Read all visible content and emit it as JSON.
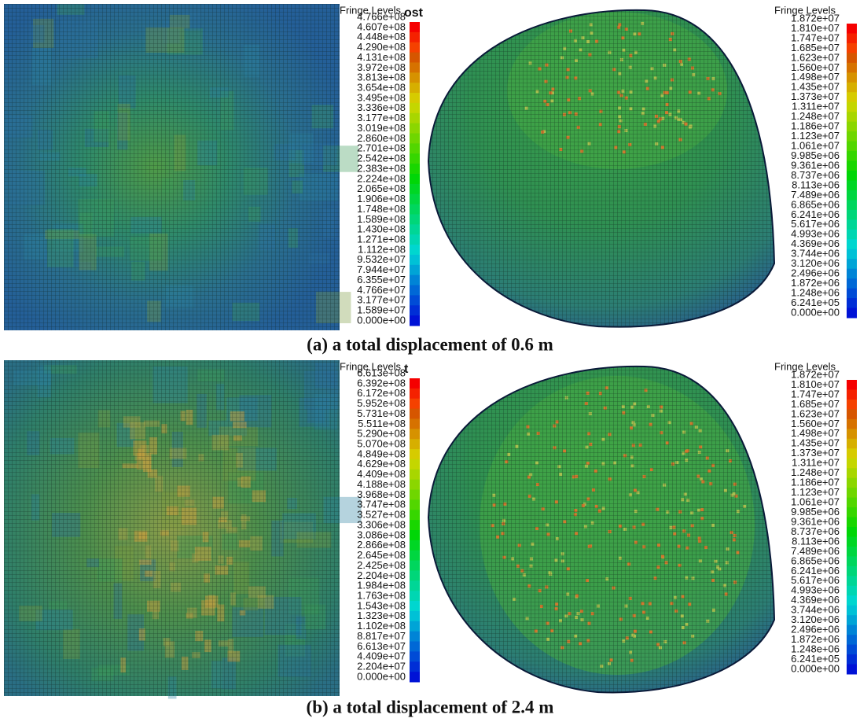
{
  "figure": {
    "rows": [
      {
        "caption": "(a) a total displacement of 0.6 m",
        "panels": [
          {
            "title_fragment": "ost",
            "legend_title": "Fringe Levels",
            "levels": [
              "4.766e+08",
              "4.607e+08",
              "4.448e+08",
              "4.290e+08",
              "4.131e+08",
              "3.972e+08",
              "3.813e+08",
              "3.654e+08",
              "3.495e+08",
              "3.336e+08",
              "3.177e+08",
              "3.019e+08",
              "2.860e+08",
              "2.701e+08",
              "2.542e+08",
              "2.383e+08",
              "2.224e+08",
              "2.065e+08",
              "1.906e+08",
              "1.748e+08",
              "1.589e+08",
              "1.430e+08",
              "1.271e+08",
              "1.112e+08",
              "9.532e+07",
              "7.944e+07",
              "6.355e+07",
              "4.766e+07",
              "3.177e+07",
              "1.589e+07",
              "0.000e+00"
            ]
          },
          {
            "legend_title": "Fringe Levels",
            "levels": [
              "1.872e+07",
              "1.810e+07",
              "1.747e+07",
              "1.685e+07",
              "1.623e+07",
              "1.560e+07",
              "1.498e+07",
              "1.435e+07",
              "1.373e+07",
              "1.311e+07",
              "1.248e+07",
              "1.186e+07",
              "1.123e+07",
              "1.061e+07",
              "9.985e+06",
              "9.361e+06",
              "8.737e+06",
              "8.113e+06",
              "7.489e+06",
              "6.865e+06",
              "6.241e+06",
              "5.617e+06",
              "4.993e+06",
              "4.369e+06",
              "3.744e+06",
              "3.120e+06",
              "2.496e+06",
              "1.872e+06",
              "1.248e+06",
              "6.241e+05",
              "0.000e+00"
            ]
          }
        ]
      },
      {
        "caption": "(b) a total displacement of 2.4 m",
        "panels": [
          {
            "title_fragment": "t",
            "legend_title": "Fringe Levels",
            "levels": [
              "6.613e+08",
              "6.392e+08",
              "6.172e+08",
              "5.952e+08",
              "5.731e+08",
              "5.511e+08",
              "5.290e+08",
              "5.070e+08",
              "4.849e+08",
              "4.629e+08",
              "4.409e+08",
              "4.188e+08",
              "3.968e+08",
              "3.747e+08",
              "3.527e+08",
              "3.306e+08",
              "3.086e+08",
              "2.866e+08",
              "2.645e+08",
              "2.425e+08",
              "2.204e+08",
              "1.984e+08",
              "1.763e+08",
              "1.543e+08",
              "1.323e+08",
              "1.102e+08",
              "8.817e+07",
              "6.613e+07",
              "4.409e+07",
              "2.204e+07",
              "0.000e+00"
            ]
          },
          {
            "legend_title": "Fringe Levels",
            "levels": [
              "1.872e+07",
              "1.810e+07",
              "1.747e+07",
              "1.685e+07",
              "1.623e+07",
              "1.560e+07",
              "1.498e+07",
              "1.435e+07",
              "1.373e+07",
              "1.311e+07",
              "1.248e+07",
              "1.186e+07",
              "1.123e+07",
              "1.061e+07",
              "9.985e+06",
              "9.361e+06",
              "8.737e+06",
              "8.113e+06",
              "7.489e+06",
              "6.865e+06",
              "6.241e+06",
              "5.617e+06",
              "4.993e+06",
              "4.369e+06",
              "3.744e+06",
              "3.120e+06",
              "2.496e+06",
              "1.872e+06",
              "1.248e+06",
              "6.241e+05",
              "0.000e+00"
            ]
          }
        ]
      }
    ]
  }
}
